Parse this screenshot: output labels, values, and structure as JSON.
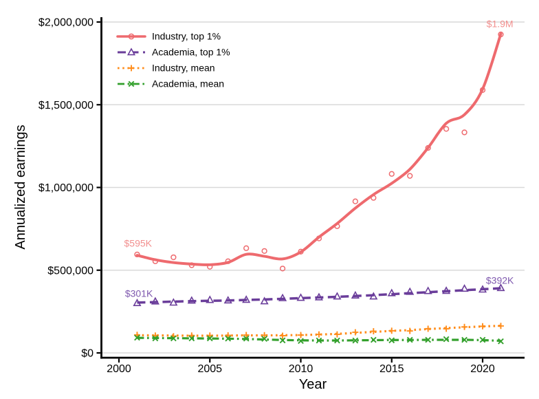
{
  "chart_data": {
    "type": "line",
    "title": "",
    "xlabel": "Year",
    "ylabel": "Annualized earnings",
    "grid": "horizontal-major",
    "legend_position": "top-left-inside",
    "xlim": [
      1999.0,
      2022.3
    ],
    "ylim_dollars": [
      0,
      2000000
    ],
    "x_ticks": [
      {
        "v": 2000,
        "label": "2000"
      },
      {
        "v": 2005,
        "label": "2005"
      },
      {
        "v": 2010,
        "label": "2010"
      },
      {
        "v": 2015,
        "label": "2015"
      },
      {
        "v": 2020,
        "label": "2020"
      }
    ],
    "y_ticks": [
      {
        "v": 0,
        "label": "$0"
      },
      {
        "v": 500,
        "label": "$500,000"
      },
      {
        "v": 1000,
        "label": "$1,000,000"
      },
      {
        "v": 1500,
        "label": "$1,500,000"
      },
      {
        "v": 2000,
        "label": "$2,000,000"
      }
    ],
    "years": [
      2001,
      2002,
      2003,
      2004,
      2005,
      2006,
      2007,
      2008,
      2009,
      2010,
      2011,
      2012,
      2013,
      2014,
      2015,
      2016,
      2017,
      2018,
      2019,
      2020,
      2021
    ],
    "series": [
      {
        "name": "Industry, top 1%",
        "color": "#EE6A6E",
        "marker": "circle",
        "linestyle": "solid",
        "points_k": [
          595,
          554,
          578,
          530,
          521,
          554,
          633,
          616,
          510,
          612,
          692,
          766,
          916,
          937,
          1082,
          1070,
          1239,
          1354,
          1333,
          1589,
          1925
        ],
        "trend_k": [
          590,
          563,
          546,
          537,
          533,
          547,
          596,
          584,
          568,
          610,
          700,
          782,
          875,
          957,
          1025,
          1110,
          1240,
          1388,
          1440,
          1595,
          1928
        ]
      },
      {
        "name": "Academia, top 1%",
        "color": "#6A3D9A",
        "marker": "triangle",
        "linestyle": "dashed",
        "points_k": [
          301,
          311,
          304,
          316,
          320,
          317,
          321,
          312,
          331,
          333,
          336,
          341,
          347,
          341,
          361,
          369,
          374,
          375,
          388,
          383,
          392
        ],
        "trend_k": [
          304,
          307,
          310,
          313,
          315,
          317,
          320,
          323,
          327,
          331,
          335,
          339,
          344,
          349,
          355,
          361,
          367,
          373,
          379,
          385,
          391
        ]
      },
      {
        "name": "Industry, mean",
        "color": "#FF8C1A",
        "marker": "plus",
        "linestyle": "dotted",
        "points_k": [
          109,
          105,
          101,
          105,
          105,
          106,
          108,
          107,
          104,
          108,
          112,
          112,
          125,
          131,
          134,
          133,
          146,
          146,
          157,
          161,
          163
        ],
        "trend_k": [
          107,
          106,
          105,
          104,
          104,
          105,
          106,
          106,
          107,
          108,
          111,
          115,
          121,
          127,
          133,
          138,
          144,
          150,
          155,
          160,
          164
        ]
      },
      {
        "name": "Academia, mean",
        "color": "#33A02C",
        "marker": "x",
        "linestyle": "dotdash",
        "points_k": [
          92,
          88,
          88,
          88,
          88,
          87,
          87,
          85,
          76,
          72,
          75,
          75,
          75,
          79,
          76,
          79,
          79,
          83,
          79,
          79,
          70
        ],
        "trend_k": [
          91,
          90,
          89,
          88,
          87,
          86,
          84,
          81,
          78,
          76,
          75,
          75,
          76,
          77,
          78,
          78,
          79,
          79,
          79,
          77,
          73
        ]
      }
    ],
    "annotations": [
      {
        "text": "$595K",
        "year": 2001.05,
        "value_k": 661,
        "color": "#F2908F"
      },
      {
        "text": "$1.9M",
        "year": 2020.95,
        "value_k": 1988,
        "color": "#F2908F"
      },
      {
        "text": "$301K",
        "year": 2001.1,
        "value_k": 358,
        "color": "#7E58AE"
      },
      {
        "text": "$392K",
        "year": 2020.95,
        "value_k": 437,
        "color": "#7E58AE"
      }
    ],
    "style": {
      "grid_color": "#D9D9D9",
      "axis_color": "#000000",
      "background": "#FFFFFF"
    }
  }
}
